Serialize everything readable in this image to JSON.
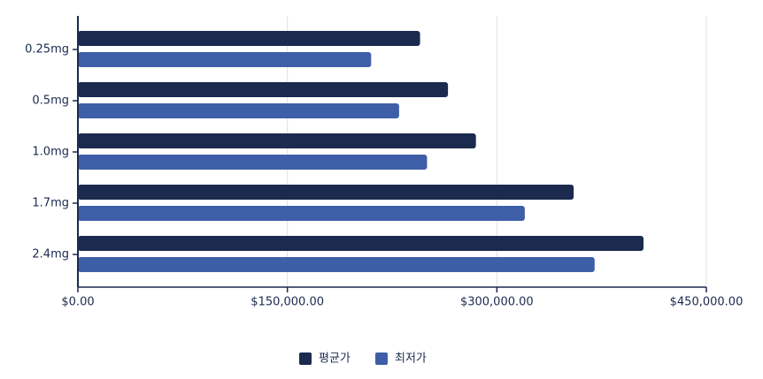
{
  "chart_data": {
    "type": "bar",
    "orientation": "horizontal",
    "categories": [
      "0.25mg",
      "0.5mg",
      "1.0mg",
      "1.7mg",
      "2.4mg"
    ],
    "series": [
      {
        "name": "평균가",
        "color": "#1b2a4e",
        "values": [
          245000,
          265000,
          285000,
          355000,
          405000
        ]
      },
      {
        "name": "최저가",
        "color": "#3f5ea8",
        "values": [
          210000,
          230000,
          250000,
          320000,
          370000
        ]
      }
    ],
    "xlim": [
      0,
      450000
    ],
    "xticks": [
      {
        "value": 0,
        "label": "$0.00"
      },
      {
        "value": 150000,
        "label": "$150,000.00"
      },
      {
        "value": 300000,
        "label": "$300,000.00"
      },
      {
        "value": 450000,
        "label": "$450,000.00"
      }
    ],
    "grid": true,
    "legend": "bottom"
  }
}
